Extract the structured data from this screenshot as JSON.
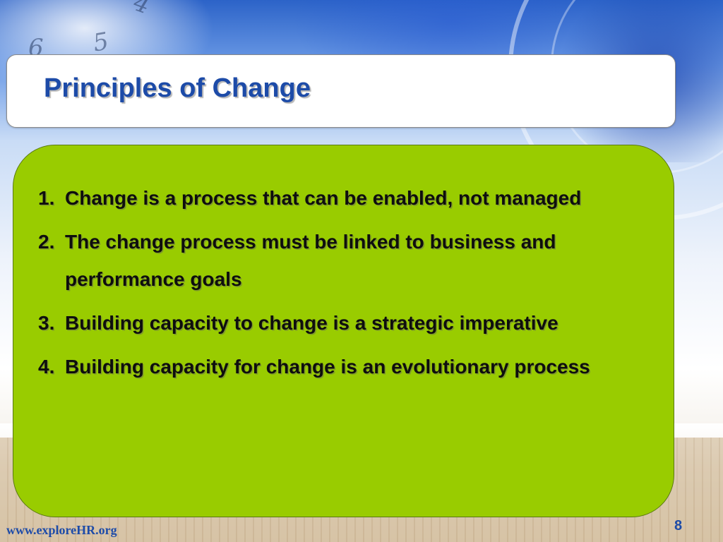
{
  "slide": {
    "title": "Principles of Change",
    "principles": [
      {
        "number": "1.",
        "text": "Change is a process that can be enabled, not managed"
      },
      {
        "number": "2.",
        "text": "The change process must be linked to business and performance goals"
      },
      {
        "number": "3.",
        "text": "Building capacity to change is a strategic imperative"
      },
      {
        "number": "4.",
        "text": "Building capacity for change is an evolutionary process"
      }
    ],
    "footer_url": "www.exploreHR.org",
    "page_number": "8"
  },
  "colors": {
    "title_text": "#1d4ba8",
    "content_background": "#99cc00",
    "body_text": "#0e0e0e"
  }
}
